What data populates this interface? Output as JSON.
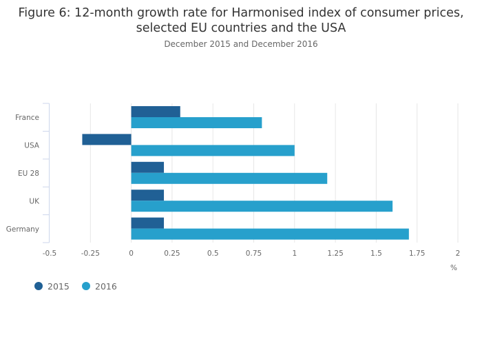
{
  "chart_data": {
    "type": "bar",
    "orientation": "horizontal",
    "title_line1": "Figure 6: 12-month growth rate for Harmonised index of consumer prices,",
    "title_line2": "selected EU countries and the USA",
    "subtitle": "December 2015 and December 2016",
    "categories": [
      "France",
      "USA",
      "EU 28",
      "UK",
      "Germany"
    ],
    "series": [
      {
        "name": "2015",
        "color": "#206095",
        "values": [
          0.3,
          -0.3,
          0.2,
          0.2,
          0.2
        ]
      },
      {
        "name": "2016",
        "color": "#27a0cc",
        "values": [
          0.8,
          1.0,
          1.2,
          1.6,
          1.7
        ]
      }
    ],
    "xlim": [
      -0.5,
      2
    ],
    "xticks": [
      -0.5,
      -0.25,
      0,
      0.25,
      0.5,
      0.75,
      1,
      1.25,
      1.5,
      1.75,
      2
    ],
    "xtick_labels": [
      "-0.5",
      "-0.25",
      "0",
      "0.25",
      "0.5",
      "0.75",
      "1",
      "1.25",
      "1.5",
      "1.75",
      "2"
    ],
    "xlabel": "%",
    "ylabel": "",
    "grid": true,
    "legend_position": "bottom-left"
  }
}
